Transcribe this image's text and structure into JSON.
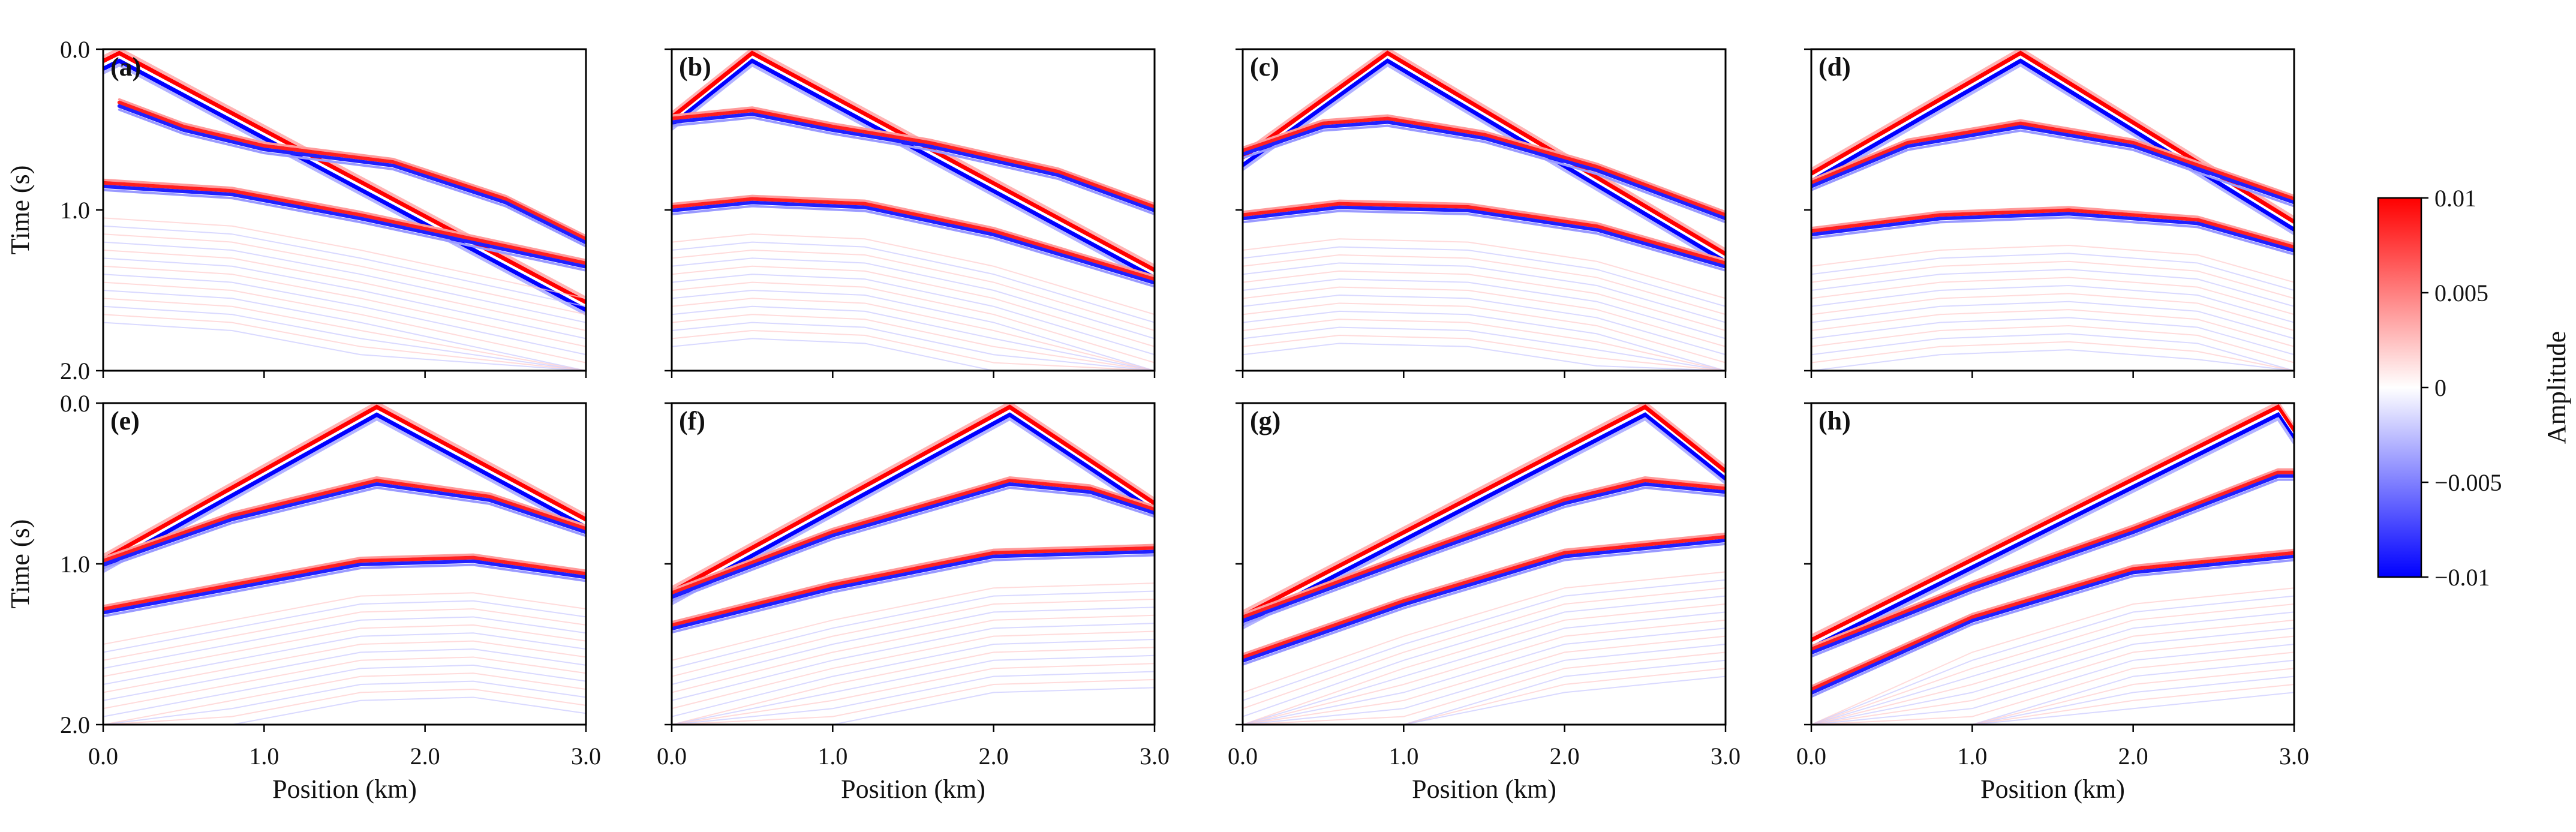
{
  "chart_data": {
    "type": "heatmap",
    "description_kind": "shot gathers",
    "panels": [
      {
        "label": "(a)",
        "source_km": 0.1,
        "direct_wave": {
          "left_t": 0.1,
          "right_t": 1.6
        },
        "reflectors": [
          [
            0.1,
            0.35
          ],
          [
            0.5,
            0.5
          ],
          [
            1.0,
            0.62
          ],
          [
            1.8,
            0.72
          ],
          [
            2.5,
            0.95
          ],
          [
            3.0,
            1.2
          ]
        ],
        "reflectors2": [
          [
            0.0,
            0.85
          ],
          [
            0.8,
            0.9
          ],
          [
            1.6,
            1.05
          ],
          [
            3.0,
            1.35
          ]
        ]
      },
      {
        "label": "(b)",
        "source_km": 0.5,
        "direct_wave": {
          "left_t": 0.45,
          "right_t": 1.4
        },
        "reflectors": [
          [
            0.0,
            0.45
          ],
          [
            0.5,
            0.4
          ],
          [
            1.0,
            0.5
          ],
          [
            1.6,
            0.6
          ],
          [
            2.4,
            0.78
          ],
          [
            3.0,
            1.0
          ]
        ],
        "reflectors2": [
          [
            0.0,
            1.0
          ],
          [
            0.5,
            0.95
          ],
          [
            1.2,
            0.98
          ],
          [
            2.0,
            1.15
          ],
          [
            3.0,
            1.45
          ]
        ]
      },
      {
        "label": "(c)",
        "source_km": 0.9,
        "direct_wave": {
          "left_t": 0.7,
          "right_t": 1.3
        },
        "reflectors": [
          [
            0.0,
            0.65
          ],
          [
            0.5,
            0.48
          ],
          [
            0.9,
            0.45
          ],
          [
            1.5,
            0.55
          ],
          [
            2.2,
            0.75
          ],
          [
            3.0,
            1.05
          ]
        ],
        "reflectors2": [
          [
            0.0,
            1.05
          ],
          [
            0.6,
            0.98
          ],
          [
            1.4,
            1.0
          ],
          [
            2.2,
            1.12
          ],
          [
            3.0,
            1.35
          ]
        ]
      },
      {
        "label": "(d)",
        "source_km": 1.3,
        "direct_wave": {
          "left_t": 0.8,
          "right_t": 1.1
        },
        "reflectors": [
          [
            0.0,
            0.85
          ],
          [
            0.6,
            0.6
          ],
          [
            1.3,
            0.48
          ],
          [
            2.0,
            0.6
          ],
          [
            3.0,
            0.95
          ]
        ],
        "reflectors2": [
          [
            0.0,
            1.15
          ],
          [
            0.8,
            1.05
          ],
          [
            1.6,
            1.02
          ],
          [
            2.4,
            1.08
          ],
          [
            3.0,
            1.25
          ]
        ]
      },
      {
        "label": "(e)",
        "source_km": 1.7,
        "direct_wave": {
          "left_t": 1.0,
          "right_t": 0.75
        },
        "reflectors": [
          [
            0.0,
            1.0
          ],
          [
            0.8,
            0.72
          ],
          [
            1.7,
            0.5
          ],
          [
            2.4,
            0.6
          ],
          [
            3.0,
            0.8
          ]
        ],
        "reflectors2": [
          [
            0.0,
            1.3
          ],
          [
            0.8,
            1.15
          ],
          [
            1.6,
            1.0
          ],
          [
            2.3,
            0.98
          ],
          [
            3.0,
            1.08
          ]
        ]
      },
      {
        "label": "(f)",
        "source_km": 2.1,
        "direct_wave": {
          "left_t": 1.2,
          "right_t": 0.65
        },
        "reflectors": [
          [
            0.0,
            1.2
          ],
          [
            1.0,
            0.82
          ],
          [
            2.1,
            0.5
          ],
          [
            2.6,
            0.55
          ],
          [
            3.0,
            0.68
          ]
        ],
        "reflectors2": [
          [
            0.0,
            1.4
          ],
          [
            1.0,
            1.15
          ],
          [
            2.0,
            0.95
          ],
          [
            3.0,
            0.92
          ]
        ]
      },
      {
        "label": "(g)",
        "source_km": 2.5,
        "direct_wave": {
          "left_t": 1.35,
          "right_t": 0.45
        },
        "reflectors": [
          [
            0.0,
            1.35
          ],
          [
            1.0,
            0.98
          ],
          [
            2.0,
            0.62
          ],
          [
            2.5,
            0.5
          ],
          [
            3.0,
            0.55
          ]
        ],
        "reflectors2": [
          [
            0.0,
            1.6
          ],
          [
            1.0,
            1.25
          ],
          [
            2.0,
            0.95
          ],
          [
            3.0,
            0.85
          ]
        ]
      },
      {
        "label": "(h)",
        "source_km": 2.9,
        "direct_wave": {
          "left_t": 1.5,
          "right_t": 0.2
        },
        "reflectors": [
          [
            0.0,
            1.55
          ],
          [
            1.0,
            1.15
          ],
          [
            2.0,
            0.8
          ],
          [
            2.9,
            0.45
          ],
          [
            3.0,
            0.45
          ]
        ],
        "reflectors2": [
          [
            0.0,
            1.8
          ],
          [
            1.0,
            1.35
          ],
          [
            2.0,
            1.05
          ],
          [
            3.0,
            0.95
          ]
        ]
      }
    ],
    "xlabel": "Position (km)",
    "ylabel": "Time (s)",
    "xlim": [
      0.0,
      3.0
    ],
    "ylim": [
      0.0,
      2.0
    ],
    "xticks": [
      "0.0",
      "1.0",
      "2.0",
      "3.0"
    ],
    "yticks": [
      "0.0",
      "1.0",
      "2.0"
    ],
    "colorbar": {
      "label": "Amplitude",
      "min": -0.01,
      "max": 0.01,
      "ticks": [
        "0.01",
        "0.005",
        "0",
        "−0.005",
        "−0.01"
      ],
      "cmap": [
        "#0000ff",
        "#ffffff",
        "#ff0000"
      ]
    }
  }
}
